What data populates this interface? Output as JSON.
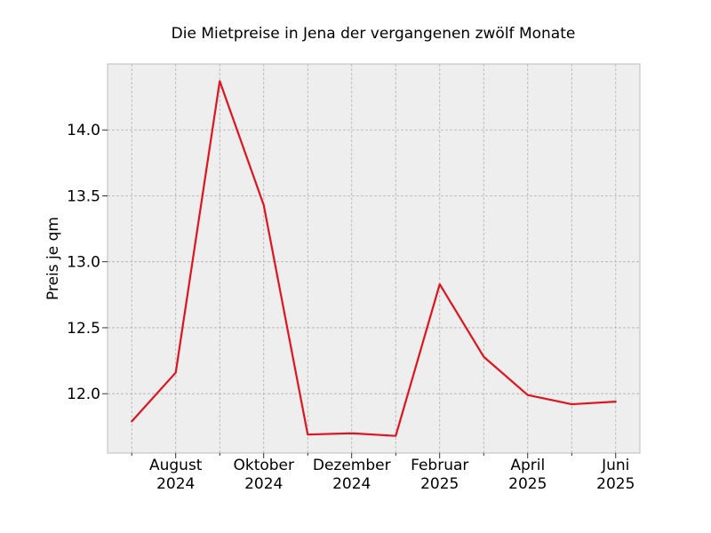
{
  "chart_data": {
    "type": "line",
    "title": "Die Mietpreise in Jena der vergangenen zwölf Monate",
    "xlabel": "",
    "ylabel": "Preis je qm",
    "x": [
      "2024-07",
      "2024-08",
      "2024-09",
      "2024-10",
      "2024-11",
      "2024-12",
      "2025-01",
      "2025-02",
      "2025-03",
      "2025-04",
      "2025-05",
      "2025-06"
    ],
    "series": [
      {
        "values": [
          11.79,
          12.16,
          14.37,
          13.43,
          11.69,
          11.7,
          11.68,
          12.83,
          12.28,
          11.99,
          11.92,
          11.94
        ]
      }
    ],
    "xticks": [
      {
        "x": "2024-08",
        "line1": "August",
        "line2": "2024"
      },
      {
        "x": "2024-10",
        "line1": "Oktober",
        "line2": "2024"
      },
      {
        "x": "2024-12",
        "line1": "Dezember",
        "line2": "2024"
      },
      {
        "x": "2025-02",
        "line1": "Februar",
        "line2": "2025"
      },
      {
        "x": "2025-04",
        "line1": "April",
        "line2": "2025"
      },
      {
        "x": "2025-06",
        "line1": "Juni",
        "line2": "2025"
      }
    ],
    "yticks": [
      {
        "value": 12.0,
        "label": "12.0"
      },
      {
        "value": 12.5,
        "label": "12.5"
      },
      {
        "value": 13.0,
        "label": "13.0"
      },
      {
        "value": 13.5,
        "label": "13.5"
      },
      {
        "value": 14.0,
        "label": "14.0"
      }
    ],
    "ylim": [
      11.55,
      14.5
    ],
    "grid": true,
    "legend": "none",
    "colors": {
      "line": "#e0141e",
      "plot_background": "#eeeeee",
      "grid": "#b0b0b0",
      "frame": "#bcbcbc"
    }
  }
}
